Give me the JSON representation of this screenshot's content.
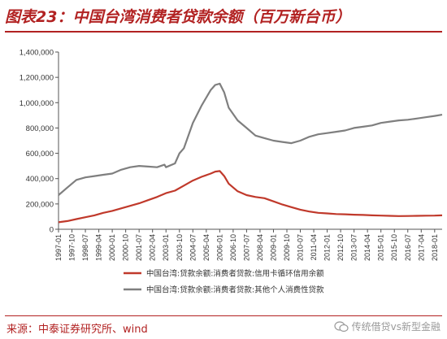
{
  "title": "图表23：中国台湾消费者贷款余额（百万新台币）",
  "source": "来源：中泰证券研究所、wind",
  "watermark": "传统借贷vs新型金融",
  "chart_data": {
    "type": "line",
    "title": "",
    "xlabel": "",
    "ylabel": "",
    "ylim": [
      0,
      1400000
    ],
    "y_ticks": [
      "0",
      "200,000",
      "400,000",
      "600,000",
      "800,000",
      "1,000,000",
      "1,200,000",
      "1,400,000"
    ],
    "x_ticks": [
      "1997-01",
      "1997-10",
      "1998-07",
      "1999-04",
      "2000-01",
      "2000-10",
      "2001-07",
      "2002-04",
      "2003-01",
      "2003-10",
      "2004-07",
      "2005-04",
      "2006-01",
      "2006-10",
      "2007-07",
      "2008-04",
      "2009-01",
      "2009-10",
      "2010-07",
      "2011-04",
      "2012-01",
      "2012-10",
      "2013-07",
      "2014-04",
      "2015-01",
      "2015-10",
      "2016-07",
      "2017-04",
      "2018-01"
    ],
    "x_range": [
      "1997-01",
      "2018-06"
    ],
    "grid": false,
    "legend_position": "bottom",
    "series": [
      {
        "name": "中国台湾:贷款余额:消费者贷款:信用卡循环信用余额",
        "color": "#c0392b",
        "points": [
          [
            "1997-01",
            55000
          ],
          [
            "1997-07",
            65000
          ],
          [
            "1998-01",
            80000
          ],
          [
            "1998-07",
            95000
          ],
          [
            "1999-01",
            110000
          ],
          [
            "1999-07",
            130000
          ],
          [
            "2000-01",
            145000
          ],
          [
            "2000-07",
            165000
          ],
          [
            "2001-01",
            185000
          ],
          [
            "2001-07",
            205000
          ],
          [
            "2002-01",
            230000
          ],
          [
            "2002-07",
            255000
          ],
          [
            "2003-01",
            285000
          ],
          [
            "2003-07",
            305000
          ],
          [
            "2004-01",
            345000
          ],
          [
            "2004-07",
            385000
          ],
          [
            "2005-01",
            415000
          ],
          [
            "2005-07",
            440000
          ],
          [
            "2005-10",
            455000
          ],
          [
            "2006-01",
            460000
          ],
          [
            "2006-04",
            420000
          ],
          [
            "2006-07",
            360000
          ],
          [
            "2007-01",
            300000
          ],
          [
            "2007-07",
            270000
          ],
          [
            "2008-01",
            255000
          ],
          [
            "2008-07",
            245000
          ],
          [
            "2009-01",
            220000
          ],
          [
            "2009-07",
            195000
          ],
          [
            "2010-01",
            175000
          ],
          [
            "2010-07",
            155000
          ],
          [
            "2011-01",
            140000
          ],
          [
            "2011-07",
            130000
          ],
          [
            "2012-01",
            125000
          ],
          [
            "2012-07",
            120000
          ],
          [
            "2013-01",
            118000
          ],
          [
            "2013-07",
            115000
          ],
          [
            "2014-01",
            113000
          ],
          [
            "2014-07",
            110000
          ],
          [
            "2015-01",
            108000
          ],
          [
            "2015-07",
            106000
          ],
          [
            "2016-01",
            104000
          ],
          [
            "2016-07",
            105000
          ],
          [
            "2017-01",
            106000
          ],
          [
            "2017-07",
            107000
          ],
          [
            "2018-01",
            108000
          ],
          [
            "2018-06",
            110000
          ]
        ]
      },
      {
        "name": "中国台湾:贷款余额:消费者贷款:其他个人消费性贷款",
        "color": "#7f7f7f",
        "points": [
          [
            "1997-01",
            270000
          ],
          [
            "1997-07",
            330000
          ],
          [
            "1998-01",
            390000
          ],
          [
            "1998-07",
            410000
          ],
          [
            "1999-01",
            420000
          ],
          [
            "1999-07",
            430000
          ],
          [
            "2000-01",
            440000
          ],
          [
            "2000-07",
            470000
          ],
          [
            "2001-01",
            490000
          ],
          [
            "2001-07",
            500000
          ],
          [
            "2002-01",
            495000
          ],
          [
            "2002-07",
            490000
          ],
          [
            "2002-12",
            510000
          ],
          [
            "2003-01",
            490000
          ],
          [
            "2003-07",
            520000
          ],
          [
            "2003-10",
            600000
          ],
          [
            "2004-01",
            640000
          ],
          [
            "2004-07",
            840000
          ],
          [
            "2005-01",
            980000
          ],
          [
            "2005-07",
            1100000
          ],
          [
            "2005-10",
            1140000
          ],
          [
            "2006-01",
            1150000
          ],
          [
            "2006-04",
            1080000
          ],
          [
            "2006-07",
            960000
          ],
          [
            "2007-01",
            860000
          ],
          [
            "2007-07",
            800000
          ],
          [
            "2008-01",
            740000
          ],
          [
            "2008-07",
            720000
          ],
          [
            "2009-01",
            700000
          ],
          [
            "2009-07",
            690000
          ],
          [
            "2010-01",
            680000
          ],
          [
            "2010-07",
            700000
          ],
          [
            "2011-01",
            730000
          ],
          [
            "2011-07",
            750000
          ],
          [
            "2012-01",
            760000
          ],
          [
            "2012-07",
            770000
          ],
          [
            "2013-01",
            780000
          ],
          [
            "2013-07",
            800000
          ],
          [
            "2014-01",
            810000
          ],
          [
            "2014-07",
            820000
          ],
          [
            "2015-01",
            840000
          ],
          [
            "2015-07",
            850000
          ],
          [
            "2016-01",
            860000
          ],
          [
            "2016-07",
            865000
          ],
          [
            "2017-01",
            875000
          ],
          [
            "2017-07",
            885000
          ],
          [
            "2018-01",
            895000
          ],
          [
            "2018-06",
            905000
          ]
        ]
      }
    ]
  }
}
